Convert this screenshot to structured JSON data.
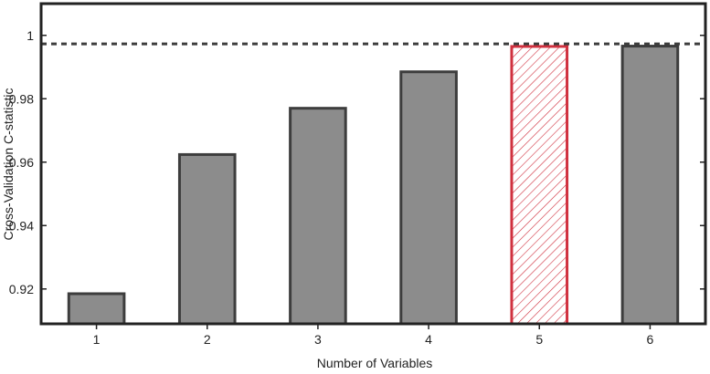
{
  "chart_data": {
    "type": "bar",
    "title": "",
    "xlabel": "Number of Variables",
    "ylabel": "Cross-Validation C-statistic",
    "categories": [
      "1",
      "2",
      "3",
      "4",
      "5",
      "6"
    ],
    "values": [
      0.9185,
      0.9624,
      0.977,
      0.9885,
      0.9965,
      0.9966
    ],
    "ylim": [
      0.909,
      1.01
    ],
    "yticks": [
      0.92,
      0.94,
      0.96,
      0.98,
      1
    ],
    "ytick_labels": [
      "0.92",
      "0.94",
      "0.96",
      "0.98",
      "1"
    ],
    "reference_line": {
      "value": 0.9973,
      "style": "dashed"
    },
    "highlighted_category": "5",
    "grid": false,
    "legend": "none",
    "colors": {
      "bar_fill": "#8c8c8c",
      "bar_stroke": "#3d3d3d",
      "highlight_stroke": "#d0313f",
      "highlight_hatch": "#d0313f",
      "axis": "#222222",
      "reference_line": "#3d3d3d"
    }
  }
}
